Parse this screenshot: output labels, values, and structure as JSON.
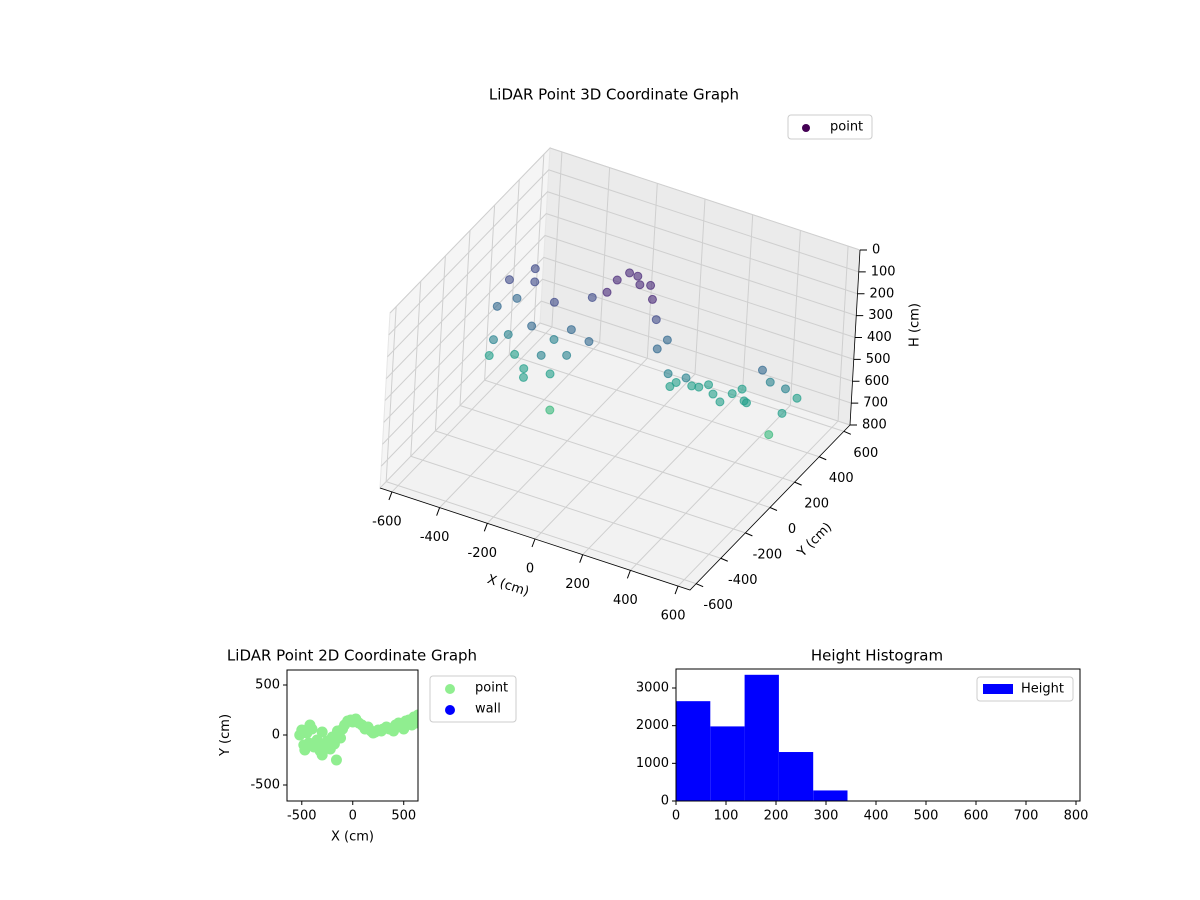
{
  "chart_data": [
    {
      "type": "scatter3d",
      "title": "LiDAR Point 3D Coordinate Graph",
      "xlabel": "X (cm)",
      "ylabel": "Y (cm)",
      "zlabel": "H (cm)",
      "colormap": "viridis",
      "legend": "upper right",
      "series": [
        {
          "name": "point",
          "x": [
            -520,
            -500,
            -480,
            -470,
            -450,
            -430,
            -400,
            -380,
            -350,
            -320,
            -300,
            -280,
            -250,
            -220,
            -200,
            -180,
            -150,
            -120,
            -100,
            -80,
            -50,
            -20,
            0,
            30,
            60,
            90,
            120,
            150,
            180,
            200,
            220,
            250,
            280,
            300,
            330,
            360,
            400,
            420,
            450,
            480,
            500,
            520,
            550,
            580,
            600,
            620,
            640,
            -160,
            -300,
            -420
          ],
          "y": [
            0,
            50,
            -100,
            -150,
            20,
            -80,
            60,
            -120,
            -50,
            -160,
            30,
            -100,
            -60,
            -140,
            -20,
            -90,
            40,
            -30,
            60,
            100,
            140,
            150,
            130,
            160,
            120,
            100,
            60,
            80,
            40,
            20,
            30,
            50,
            40,
            60,
            80,
            60,
            40,
            100,
            120,
            80,
            60,
            140,
            150,
            100,
            180,
            120,
            200,
            -250,
            -200,
            100
          ],
          "z": [
            300,
            200,
            380,
            420,
            250,
            350,
            180,
            400,
            300,
            420,
            220,
            380,
            320,
            420,
            280,
            350,
            150,
            300,
            120,
            80,
            60,
            70,
            90,
            100,
            130,
            200,
            300,
            260,
            380,
            420,
            400,
            380,
            400,
            410,
            400,
            420,
            430,
            420,
            400,
            420,
            410,
            300,
            350,
            550,
            380,
            450,
            420,
            500,
            430,
            150
          ]
        }
      ],
      "xlim": [
        -650,
        650
      ],
      "xticks": [
        -600,
        -400,
        -200,
        0,
        200,
        400,
        600
      ],
      "ylim": [
        -650,
        650
      ],
      "yticks": [
        -600,
        -400,
        -200,
        0,
        200,
        400,
        600
      ],
      "zlim": [
        800,
        0
      ],
      "zticks": [
        0,
        100,
        200,
        300,
        400,
        500,
        600,
        700,
        800
      ],
      "grid": true
    },
    {
      "type": "scatter",
      "title": "LiDAR Point 2D Coordinate Graph",
      "xlabel": "X (cm)",
      "ylabel": "Y (cm)",
      "legend": "outside right",
      "series": [
        {
          "name": "point",
          "color": "#90ee90",
          "x": [
            -520,
            -500,
            -480,
            -470,
            -450,
            -430,
            -400,
            -380,
            -350,
            -320,
            -300,
            -280,
            -250,
            -220,
            -200,
            -180,
            -150,
            -120,
            -100,
            -80,
            -50,
            -20,
            0,
            30,
            60,
            90,
            120,
            150,
            180,
            200,
            220,
            250,
            280,
            300,
            330,
            360,
            400,
            420,
            450,
            480,
            500,
            520,
            550,
            580,
            600,
            620,
            640,
            -160,
            -300,
            -420
          ],
          "y": [
            0,
            50,
            -100,
            -150,
            20,
            -80,
            60,
            -120,
            -50,
            -160,
            30,
            -100,
            -60,
            -140,
            -20,
            -90,
            40,
            -30,
            60,
            100,
            140,
            150,
            130,
            160,
            120,
            100,
            60,
            80,
            40,
            20,
            30,
            50,
            40,
            60,
            80,
            60,
            40,
            100,
            120,
            80,
            60,
            140,
            150,
            100,
            180,
            120,
            200,
            -250,
            -200,
            100
          ]
        },
        {
          "name": "wall",
          "color": "#0000ff",
          "x": [],
          "y": []
        }
      ],
      "xlim": [
        -645,
        640
      ],
      "xticks": [
        -500,
        0,
        500
      ],
      "ylim": [
        -660,
        650
      ],
      "yticks": [
        -500,
        0,
        500
      ]
    },
    {
      "type": "histogram",
      "title": "Height Histogram",
      "legend": "upper right",
      "series": [
        {
          "name": "Height",
          "color": "#0000ff",
          "bins": [
            0,
            68.6,
            137.2,
            205.8,
            274.4,
            343
          ],
          "values": [
            2650,
            1980,
            3350,
            1300,
            280
          ]
        }
      ],
      "xlim": [
        0,
        808
      ],
      "xticks": [
        0,
        100,
        200,
        300,
        400,
        500,
        600,
        700,
        800
      ],
      "ylim": [
        0,
        3504
      ],
      "yticks": [
        0,
        1000,
        2000,
        3000
      ]
    }
  ]
}
